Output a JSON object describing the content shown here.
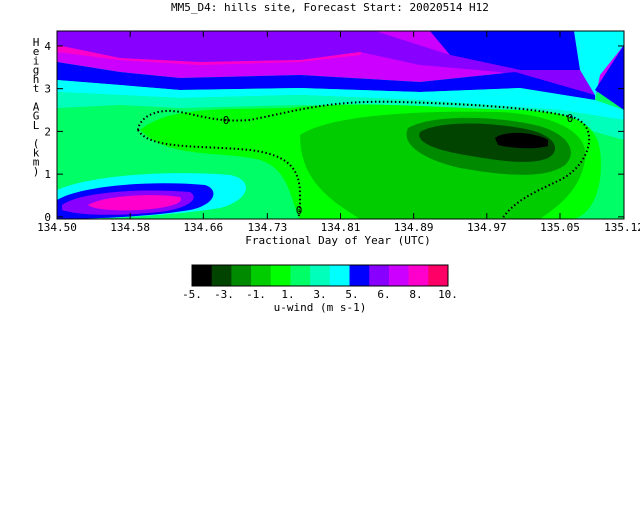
{
  "chart_data": {
    "type": "heatmap",
    "title": "MM5_D4: hills site,  Forecast Start: 20020514 H12",
    "xlabel": "Fractional Day of Year (UTC)",
    "ylabel_chars": [
      "H",
      "e",
      "i",
      "g",
      "h",
      "t",
      "",
      "A",
      "G",
      "L",
      "",
      "(",
      "k",
      "m",
      ")"
    ],
    "x_ticks": [
      "134.50",
      "134.58",
      "134.66",
      "134.73",
      "134.81",
      "134.89",
      "134.97",
      "135.05",
      "135.12"
    ],
    "x_tick_values": [
      134.5,
      134.58,
      134.66,
      134.73,
      134.81,
      134.89,
      134.97,
      135.05,
      135.12
    ],
    "xlim": [
      134.5,
      135.12
    ],
    "y_ticks": [
      "0",
      "1",
      "2",
      "3",
      "4"
    ],
    "y_tick_values": [
      0,
      1,
      2,
      3,
      4
    ],
    "ylim": [
      -0.05,
      4.35
    ],
    "grid": false,
    "contour_label": "0",
    "colorbar": {
      "label": "u-wind (m s-1)",
      "tick_labels": [
        "-5.",
        "-3.",
        "-1.",
        "1.",
        "3.",
        "5.",
        "6.",
        "8.",
        "10."
      ],
      "colors": [
        "#000000",
        "#004400",
        "#008a00",
        "#00cc00",
        "#00ff00",
        "#00ff66",
        "#00ffbb",
        "#00ffff",
        "#0000ff",
        "#8800ff",
        "#cc00ff",
        "#ff00cc",
        "#ff0066"
      ]
    },
    "field": {
      "rows_bottom_to_top": [
        {
          "y": 0.0,
          "x": [
            134.5,
            134.555,
            134.6,
            134.635,
            134.66,
            134.7,
            134.75,
            134.8,
            134.85,
            134.9,
            134.95,
            135.0,
            135.05,
            135.1,
            135.12
          ],
          "level": [
            8,
            8,
            10,
            10,
            8,
            4,
            3,
            3,
            3,
            3,
            4,
            4,
            4,
            5,
            5
          ]
        },
        {
          "y": 0.35,
          "x": [
            134.5,
            134.555,
            134.6,
            134.635,
            134.66,
            134.7,
            134.75,
            134.8,
            134.85,
            134.9,
            134.95,
            135.0,
            135.05,
            135.1,
            135.12
          ],
          "level": [
            8,
            9,
            11,
            9,
            7,
            4,
            3,
            3,
            3,
            3,
            4,
            4,
            4,
            5,
            5
          ]
        },
        {
          "y": 1.0,
          "x": [
            134.5,
            134.58,
            134.66,
            134.72,
            134.78,
            134.82,
            134.88,
            134.93,
            134.97,
            135.02,
            135.06,
            135.1,
            135.12
          ],
          "level": [
            7,
            6,
            5,
            4,
            3,
            2,
            2,
            2,
            2,
            2,
            3,
            5,
            5
          ]
        },
        {
          "y": 1.75,
          "x": [
            134.5,
            134.58,
            134.66,
            134.72,
            134.78,
            134.82,
            134.88,
            134.93,
            134.99,
            135.03,
            135.06,
            135.1,
            135.12
          ],
          "level": [
            5,
            4,
            4,
            3,
            2,
            2,
            1,
            1,
            0,
            1,
            2,
            5,
            6
          ]
        },
        {
          "y": 2.6,
          "x": [
            134.5,
            134.58,
            134.66,
            134.73,
            134.81,
            134.89,
            134.97,
            135.05,
            135.1,
            135.12
          ],
          "level": [
            5,
            5,
            5,
            5,
            5,
            5,
            5,
            6,
            6,
            6
          ]
        },
        {
          "y": 3.2,
          "x": [
            134.5,
            134.58,
            134.66,
            134.73,
            134.81,
            134.89,
            134.97,
            135.05,
            135.09,
            135.12
          ],
          "level": [
            6,
            6,
            6,
            6,
            6,
            6,
            6,
            7,
            8,
            7
          ]
        },
        {
          "y": 3.75,
          "x": [
            134.5,
            134.58,
            134.66,
            134.73,
            134.81,
            134.89,
            134.97,
            135.05,
            135.08,
            135.12
          ],
          "level": [
            9,
            9,
            9,
            10,
            10,
            8,
            8,
            7,
            7,
            8
          ]
        },
        {
          "y": 4.35,
          "x": [
            134.5,
            134.58,
            134.66,
            134.73,
            134.81,
            134.89,
            134.97,
            135.05,
            135.12
          ],
          "level": [
            11,
            11,
            11,
            11,
            10,
            9,
            8,
            8,
            7
          ]
        }
      ]
    }
  }
}
